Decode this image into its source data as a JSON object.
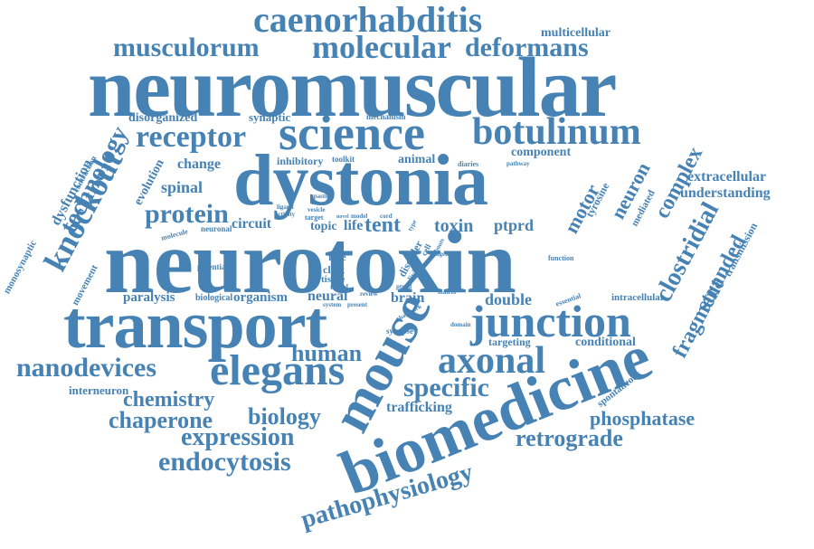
{
  "color": "#4682b4",
  "words": [
    "neuromuscular",
    "neurotoxin",
    "dystonia",
    "transport",
    "biomedicine",
    "mouse",
    "science",
    "junction",
    "botulinum",
    "caenorhabditis",
    "molecular",
    "musculorum",
    "deformans",
    "elegans",
    "axonal",
    "nanodevices",
    "receptor",
    "knockout",
    "technology",
    "protein",
    "human",
    "specific",
    "expression",
    "endocytosis",
    "chaperone",
    "chemistry",
    "biology",
    "retrograde",
    "pathophysiology",
    "phosphatase",
    "clostridial",
    "fragment",
    "stranded",
    "complex",
    "neuron",
    "motor",
    "understanding",
    "extracellular",
    "multicellular",
    "disorganized",
    "synaptic",
    "dysfunction",
    "spinal",
    "change",
    "evolution",
    "contraction",
    "movement",
    "monosynaptic",
    "interneuron",
    "toxin",
    "ptprd",
    "tent",
    "topic",
    "life",
    "circuit",
    "inhibitory",
    "toolkit",
    "animal",
    "component",
    "tyrosine",
    "mediated",
    "trafficking",
    "targeting",
    "conditional",
    "double",
    "intracellular",
    "paralysis",
    "biological",
    "organism",
    "neural",
    "brain",
    "free",
    "click",
    "tissue",
    "potential",
    "neuronal",
    "molecule",
    "mechanism",
    "diaries",
    "pathway",
    "transmission",
    "spontaneous",
    "essential",
    "disorder",
    "synapse",
    "hallmark",
    "domain",
    "function",
    "travel",
    "system",
    "present",
    "review",
    "ptprd",
    "cord",
    "agent",
    "matrix",
    "type",
    "living",
    "cell",
    "bouts",
    "vesicle",
    "ligand",
    "activity",
    "target",
    "spastic",
    "model",
    "novel"
  ]
}
